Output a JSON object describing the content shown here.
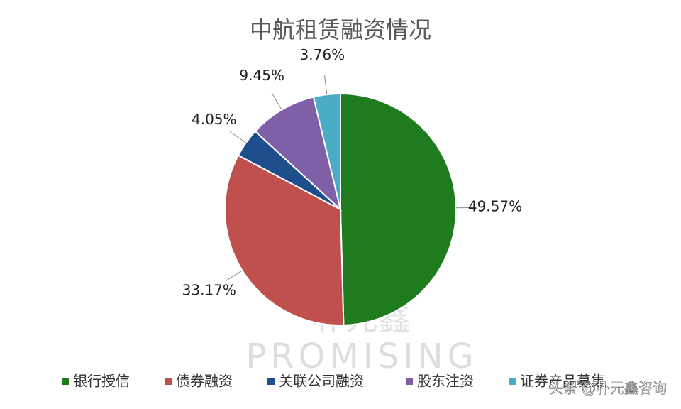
{
  "chart_data": {
    "type": "pie",
    "title": "中航租赁融资情况",
    "categories": [
      "银行授信",
      "债券融资",
      "关联公司融资",
      "股东注资",
      "证券产品募集"
    ],
    "values": [
      49.57,
      33.17,
      4.05,
      9.45,
      3.76
    ],
    "value_labels": [
      "49.57%",
      "33.17%",
      "4.05%",
      "9.45%",
      "3.76%"
    ],
    "colors": [
      "#1e7b1e",
      "#c0504d",
      "#1f4e8c",
      "#7f60a8",
      "#4bacc6"
    ],
    "legend": "bottom"
  },
  "watermark": {
    "logo": "朴元鑫",
    "brand": "PROMISING",
    "credit": "头条 @朴元鑫咨询"
  }
}
